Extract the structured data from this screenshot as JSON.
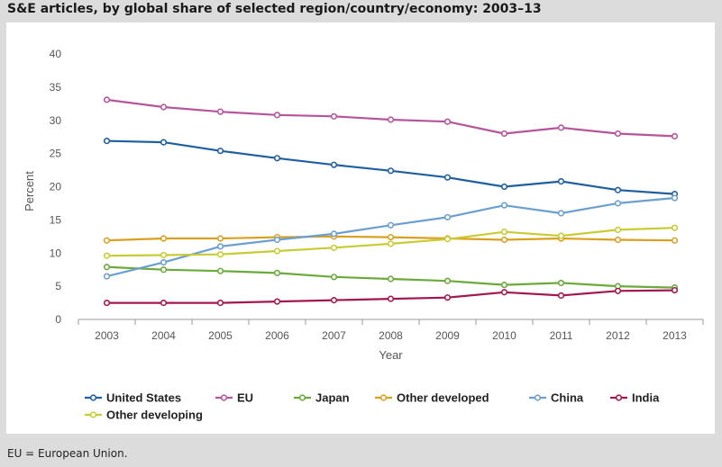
{
  "title": "S&E articles, by global share of selected region/country/economy: 2003–13",
  "footnote": "EU = European Union.",
  "chart_data": {
    "type": "line",
    "title": "S&E articles, by global share of selected region/country/economy: 2003–13",
    "xlabel": "Year",
    "ylabel": "Percent",
    "ylim": [
      0,
      40
    ],
    "yticks": [
      0,
      5,
      10,
      15,
      20,
      25,
      30,
      35,
      40
    ],
    "grid": false,
    "legend_position": "bottom",
    "categories": [
      "2003",
      "2004",
      "2005",
      "2006",
      "2007",
      "2008",
      "2009",
      "2010",
      "2011",
      "2012",
      "2013"
    ],
    "series": [
      {
        "name": "United States",
        "color": "#1f5fa0",
        "values": [
          26.9,
          26.7,
          25.4,
          24.3,
          23.3,
          22.4,
          21.4,
          20.0,
          20.8,
          19.5,
          18.9
        ]
      },
      {
        "name": "EU",
        "color": "#b5559b",
        "values": [
          33.1,
          32.0,
          31.3,
          30.8,
          30.6,
          30.1,
          29.8,
          28.0,
          28.9,
          28.0,
          27.6
        ]
      },
      {
        "name": "Japan",
        "color": "#6aaa3a",
        "values": [
          7.9,
          7.5,
          7.3,
          7.0,
          6.4,
          6.1,
          5.8,
          5.2,
          5.5,
          5.0,
          4.8
        ]
      },
      {
        "name": "Other developed",
        "color": "#d9a020",
        "values": [
          11.9,
          12.2,
          12.2,
          12.4,
          12.5,
          12.4,
          12.2,
          12.0,
          12.2,
          12.0,
          11.9
        ]
      },
      {
        "name": "China",
        "color": "#6a9fd0",
        "values": [
          6.5,
          8.6,
          11.0,
          12.0,
          12.9,
          14.2,
          15.4,
          17.2,
          16.0,
          17.5,
          18.3
        ]
      },
      {
        "name": "India",
        "color": "#a3174f",
        "values": [
          2.5,
          2.5,
          2.5,
          2.7,
          2.9,
          3.1,
          3.3,
          4.1,
          3.6,
          4.3,
          4.4
        ]
      },
      {
        "name": "Other developing",
        "color": "#c8cc34",
        "values": [
          9.6,
          9.7,
          9.8,
          10.3,
          10.8,
          11.4,
          12.1,
          13.2,
          12.6,
          13.5,
          13.8
        ]
      }
    ]
  }
}
